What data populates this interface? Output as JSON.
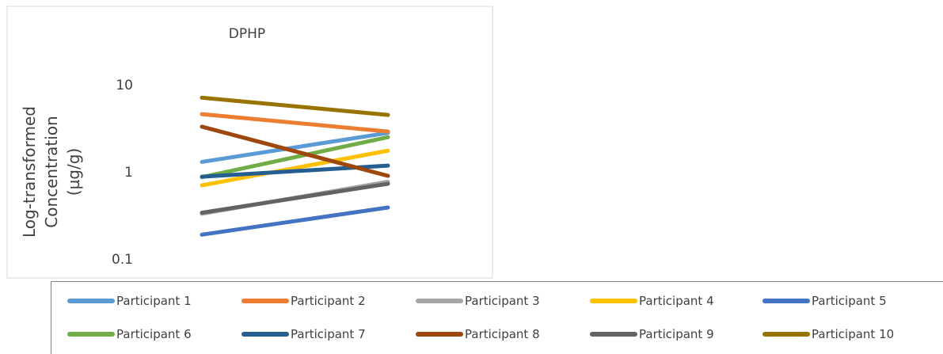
{
  "chart_data": {
    "type": "line",
    "title": "DPHP",
    "ylabel_lines": [
      "Log-transformed",
      "Concentration",
      "(µg/g)"
    ],
    "y_scale": "log",
    "ylim": [
      0.1,
      10
    ],
    "ytick_labels": [
      "10",
      "1",
      "0.1"
    ],
    "grid": false,
    "legend_position": "bottom",
    "series": [
      {
        "name": "Participant 1",
        "color": "#5b9bd5",
        "values": [
          1.3,
          2.8
        ]
      },
      {
        "name": "Participant 2",
        "color": "#ed7d31",
        "values": [
          4.6,
          2.9
        ]
      },
      {
        "name": "Participant 3",
        "color": "#a5a5a5",
        "values": [
          0.33,
          0.77
        ]
      },
      {
        "name": "Participant 4",
        "color": "#ffc000",
        "values": [
          0.7,
          1.75
        ]
      },
      {
        "name": "Participant 5",
        "color": "#4472c4",
        "values": [
          0.19,
          0.39
        ]
      },
      {
        "name": "Participant 6",
        "color": "#70ad47",
        "values": [
          0.87,
          2.5
        ]
      },
      {
        "name": "Participant 7",
        "color": "#255e91",
        "values": [
          0.88,
          1.18
        ]
      },
      {
        "name": "Participant 8",
        "color": "#9e480e",
        "values": [
          3.3,
          0.9
        ]
      },
      {
        "name": "Participant 9",
        "color": "#636363",
        "values": [
          0.34,
          0.73
        ]
      },
      {
        "name": "Participant 10",
        "color": "#997300",
        "values": [
          7.1,
          4.5
        ]
      }
    ]
  }
}
